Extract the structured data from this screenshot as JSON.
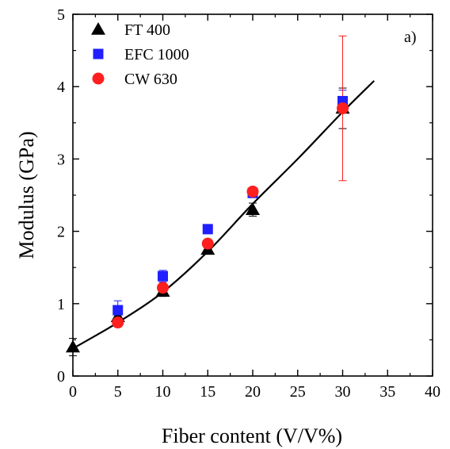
{
  "chart_data": {
    "type": "scatter",
    "title": "",
    "annotation": "a)",
    "xlabel": "Fiber content (V/V%)",
    "ylabel": "Modulus (GPa)",
    "xlim": [
      0,
      40
    ],
    "ylim": [
      0,
      5
    ],
    "xticks": [
      0,
      5,
      10,
      15,
      20,
      25,
      30,
      35,
      40
    ],
    "yticks": [
      0,
      1,
      2,
      3,
      4,
      5
    ],
    "grid": false,
    "legend_position": "top-left",
    "series": [
      {
        "name": "FT 400",
        "marker": "triangle",
        "color": "#000000",
        "points": [
          {
            "x": 0,
            "y": 0.4,
            "err": 0.12
          },
          {
            "x": 5,
            "y": 0.82,
            "err": 0.05
          },
          {
            "x": 10,
            "y": 1.17,
            "err": 0.07
          },
          {
            "x": 15,
            "y": 1.75,
            "err": 0.06
          },
          {
            "x": 20,
            "y": 2.3,
            "err": 0.09
          },
          {
            "x": 30,
            "y": 3.7,
            "err": 0.28
          }
        ]
      },
      {
        "name": "EFC 1000",
        "marker": "square",
        "color": "#1f1fff",
        "points": [
          {
            "x": 5,
            "y": 0.91,
            "err": 0.13
          },
          {
            "x": 10,
            "y": 1.38,
            "err": 0.08
          },
          {
            "x": 15,
            "y": 2.03,
            "err": 0.05
          },
          {
            "x": 20,
            "y": 2.53,
            "err": 0.05
          },
          {
            "x": 30,
            "y": 3.8,
            "err": 0.15
          }
        ]
      },
      {
        "name": "CW 630",
        "marker": "circle",
        "color": "#ff1f1f",
        "points": [
          {
            "x": 5,
            "y": 0.74,
            "err": 0.03
          },
          {
            "x": 10,
            "y": 1.22,
            "err": 0.05
          },
          {
            "x": 15,
            "y": 1.83,
            "err": 0.05
          },
          {
            "x": 20,
            "y": 2.55,
            "err": 0.05
          },
          {
            "x": 30,
            "y": 3.7,
            "err": 1.0
          }
        ]
      }
    ],
    "fit_curve": {
      "color": "#000000",
      "x": [
        0,
        5,
        10,
        15,
        20,
        25,
        30,
        33.5
      ],
      "y": [
        0.38,
        0.74,
        1.16,
        1.72,
        2.38,
        3.0,
        3.65,
        4.08
      ]
    }
  }
}
